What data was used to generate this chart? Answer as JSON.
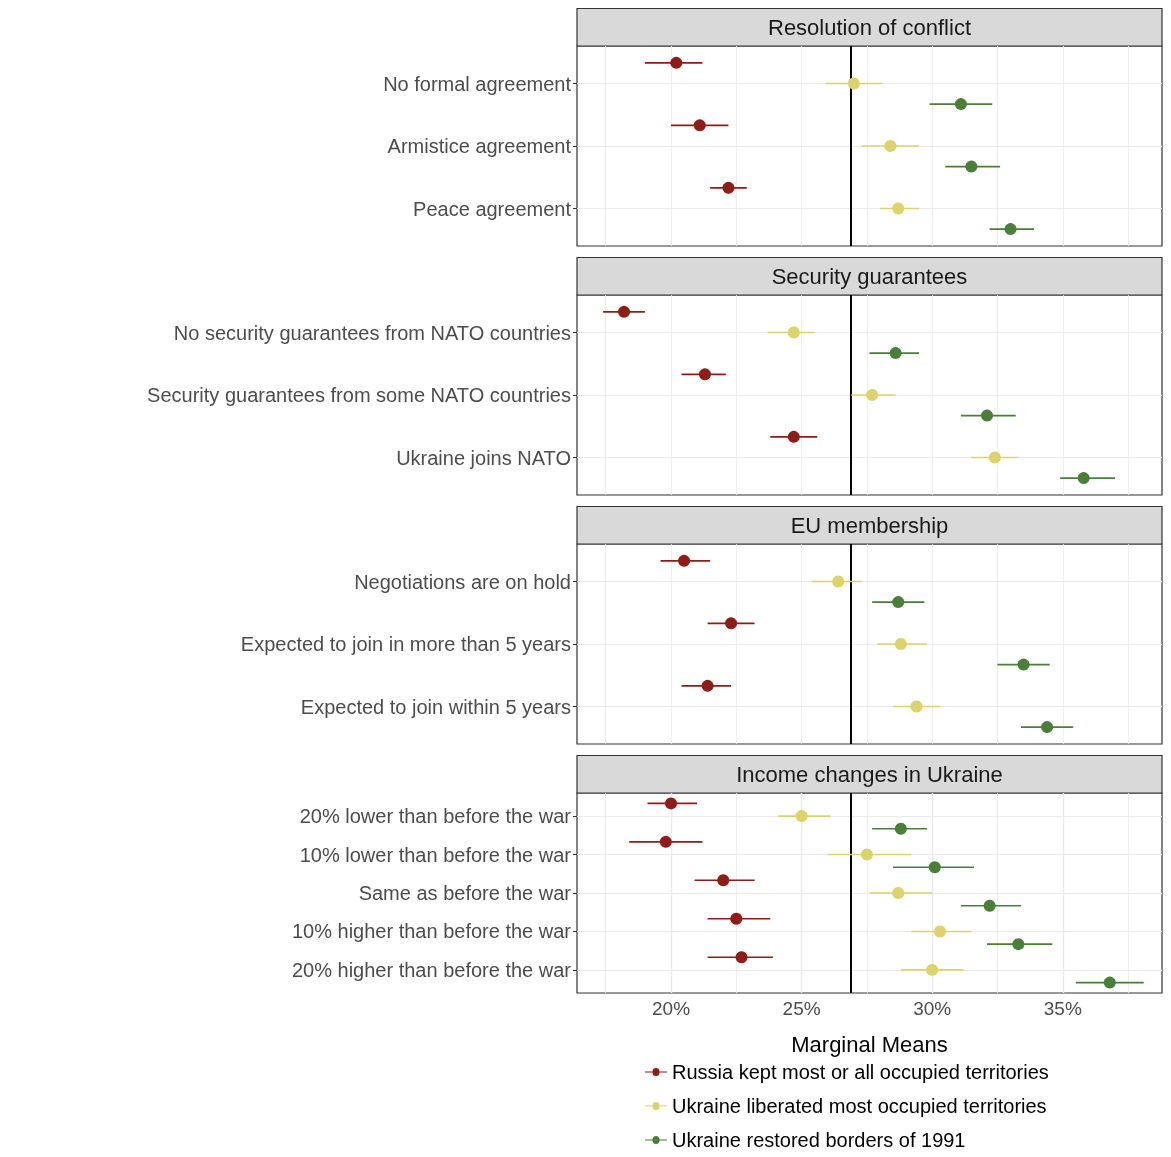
{
  "chart_data": [
    {
      "type": "scatter",
      "orientation": "horizontal",
      "title": "Resolution of conflict",
      "categories": [
        "No formal agreement",
        "Armistice agreement",
        "Peace agreement"
      ],
      "series": [
        {
          "color": "#8e1d18",
          "values": [
            20.2,
            21.1,
            22.2
          ],
          "errors": [
            [
              19.0,
              21.2
            ],
            [
              20.0,
              22.2
            ],
            [
              21.5,
              22.9
            ]
          ]
        },
        {
          "color": "#dcd36b",
          "values": [
            27.0,
            28.4,
            28.7
          ],
          "errors": [
            [
              25.9,
              28.1
            ],
            [
              27.3,
              29.5
            ],
            [
              28.0,
              29.5
            ]
          ]
        },
        {
          "color": "#4a7f3a",
          "values": [
            31.1,
            31.5,
            33.0
          ],
          "errors": [
            [
              29.9,
              32.3
            ],
            [
              30.5,
              32.6
            ],
            [
              32.2,
              33.9
            ]
          ]
        }
      ],
      "xlim": [
        16.4,
        38.8
      ],
      "xticks": [
        {
          "value": 17.5,
          "label": null
        },
        {
          "value": 20,
          "label": null
        },
        {
          "value": 22.5,
          "label": null
        },
        {
          "value": 25,
          "label": null
        },
        {
          "value": 27.5,
          "label": null
        },
        {
          "value": 30,
          "label": null
        },
        {
          "value": 32.5,
          "label": null
        },
        {
          "value": 35,
          "label": null
        },
        {
          "value": 37.5,
          "label": null
        }
      ],
      "ref_lines": [
        {
          "axis": "x",
          "value": 26.9,
          "color": "#000000"
        }
      ],
      "grid": true,
      "marker": "circle",
      "tick_labels": "y"
    },
    {
      "type": "scatter",
      "orientation": "horizontal",
      "title": "Security guarantees",
      "categories": [
        "No security guarantees from NATO countries",
        "Security guarantees from some NATO countries",
        "Ukraine joins NATO"
      ],
      "series": [
        {
          "color": "#8e1d18",
          "values": [
            18.2,
            21.3,
            24.7
          ],
          "errors": [
            [
              17.4,
              19.0
            ],
            [
              20.4,
              22.1
            ],
            [
              23.8,
              25.6
            ]
          ]
        },
        {
          "color": "#dcd36b",
          "values": [
            24.7,
            27.7,
            32.4
          ],
          "errors": [
            [
              23.7,
              25.5
            ],
            [
              26.9,
              28.6
            ],
            [
              31.5,
              33.3
            ]
          ]
        },
        {
          "color": "#4a7f3a",
          "values": [
            28.6,
            32.1,
            35.8
          ],
          "errors": [
            [
              27.6,
              29.5
            ],
            [
              31.1,
              33.2
            ],
            [
              34.9,
              37.0
            ]
          ]
        }
      ],
      "xlim": [
        16.4,
        38.8
      ],
      "xticks": [
        {
          "value": 17.5,
          "label": null
        },
        {
          "value": 20,
          "label": null
        },
        {
          "value": 22.5,
          "label": null
        },
        {
          "value": 25,
          "label": null
        },
        {
          "value": 27.5,
          "label": null
        },
        {
          "value": 30,
          "label": null
        },
        {
          "value": 32.5,
          "label": null
        },
        {
          "value": 35,
          "label": null
        },
        {
          "value": 37.5,
          "label": null
        }
      ],
      "ref_lines": [
        {
          "axis": "x",
          "value": 26.9,
          "color": "#000000"
        }
      ],
      "grid": true,
      "marker": "circle",
      "tick_labels": "y"
    },
    {
      "type": "scatter",
      "orientation": "horizontal",
      "title": "EU membership",
      "categories": [
        "Negotiations are on hold",
        "Expected to join in more than 5 years",
        "Expected to join within 5 years"
      ],
      "series": [
        {
          "color": "#8e1d18",
          "values": [
            20.5,
            22.3,
            21.4
          ],
          "errors": [
            [
              19.6,
              21.5
            ],
            [
              21.4,
              23.2
            ],
            [
              20.4,
              22.3
            ]
          ]
        },
        {
          "color": "#dcd36b",
          "values": [
            26.4,
            28.8,
            29.4
          ],
          "errors": [
            [
              25.4,
              27.3
            ],
            [
              27.9,
              29.8
            ],
            [
              28.5,
              30.3
            ]
          ]
        },
        {
          "color": "#4a7f3a",
          "values": [
            28.7,
            33.5,
            34.4
          ],
          "errors": [
            [
              27.7,
              29.7
            ],
            [
              32.5,
              34.5
            ],
            [
              33.4,
              35.4
            ]
          ]
        }
      ],
      "xlim": [
        16.4,
        38.8
      ],
      "xticks": [
        {
          "value": 17.5,
          "label": null
        },
        {
          "value": 20,
          "label": null
        },
        {
          "value": 22.5,
          "label": null
        },
        {
          "value": 25,
          "label": null
        },
        {
          "value": 27.5,
          "label": null
        },
        {
          "value": 30,
          "label": null
        },
        {
          "value": 32.5,
          "label": null
        },
        {
          "value": 35,
          "label": null
        },
        {
          "value": 37.5,
          "label": null
        }
      ],
      "ref_lines": [
        {
          "axis": "x",
          "value": 26.9,
          "color": "#000000"
        }
      ],
      "grid": true,
      "marker": "circle",
      "tick_labels": "y"
    },
    {
      "type": "scatter",
      "orientation": "horizontal",
      "title": "Income changes in Ukraine",
      "xlabel": "Marginal Means",
      "categories": [
        "20% lower than before the war",
        "10% lower than before the war",
        "Same as before the war",
        "10% higher than before the war",
        "20% higher than before the war"
      ],
      "series": [
        {
          "name": "Russia kept most or all occupied territories",
          "color": "#8e1d18",
          "values": [
            20.0,
            19.8,
            22.0,
            22.5,
            22.7
          ],
          "errors": [
            [
              19.1,
              21.0
            ],
            [
              18.4,
              21.2
            ],
            [
              20.9,
              23.2
            ],
            [
              21.4,
              23.8
            ],
            [
              21.4,
              23.9
            ]
          ]
        },
        {
          "name": "Ukraine liberated most occupied territories",
          "color": "#dcd36b",
          "values": [
            25.0,
            27.5,
            28.7,
            30.3,
            30.0
          ],
          "errors": [
            [
              24.1,
              26.1
            ],
            [
              26.0,
              29.2
            ],
            [
              27.6,
              30.0
            ],
            [
              29.2,
              31.5
            ],
            [
              28.8,
              31.2
            ]
          ]
        },
        {
          "name": "Ukraine restored borders of 1991",
          "color": "#4a7f3a",
          "values": [
            28.8,
            30.1,
            32.2,
            33.3,
            36.8
          ],
          "errors": [
            [
              27.7,
              29.8
            ],
            [
              28.5,
              31.6
            ],
            [
              31.1,
              33.4
            ],
            [
              32.1,
              34.6
            ],
            [
              35.5,
              38.1
            ]
          ]
        }
      ],
      "xlim": [
        16.4,
        38.8
      ],
      "xticks": [
        {
          "value": 17.5,
          "label": null
        },
        {
          "value": 20,
          "label": "20%"
        },
        {
          "value": 22.5,
          "label": null
        },
        {
          "value": 25,
          "label": "25%"
        },
        {
          "value": 27.5,
          "label": null
        },
        {
          "value": 30,
          "label": "30%"
        },
        {
          "value": 32.5,
          "label": null
        },
        {
          "value": 35,
          "label": "35%"
        },
        {
          "value": 37.5,
          "label": null
        }
      ],
      "ref_lines": [
        {
          "axis": "x",
          "value": 26.9,
          "color": "#000000"
        }
      ],
      "grid": true,
      "marker": "circle",
      "legend": "bottom"
    }
  ]
}
